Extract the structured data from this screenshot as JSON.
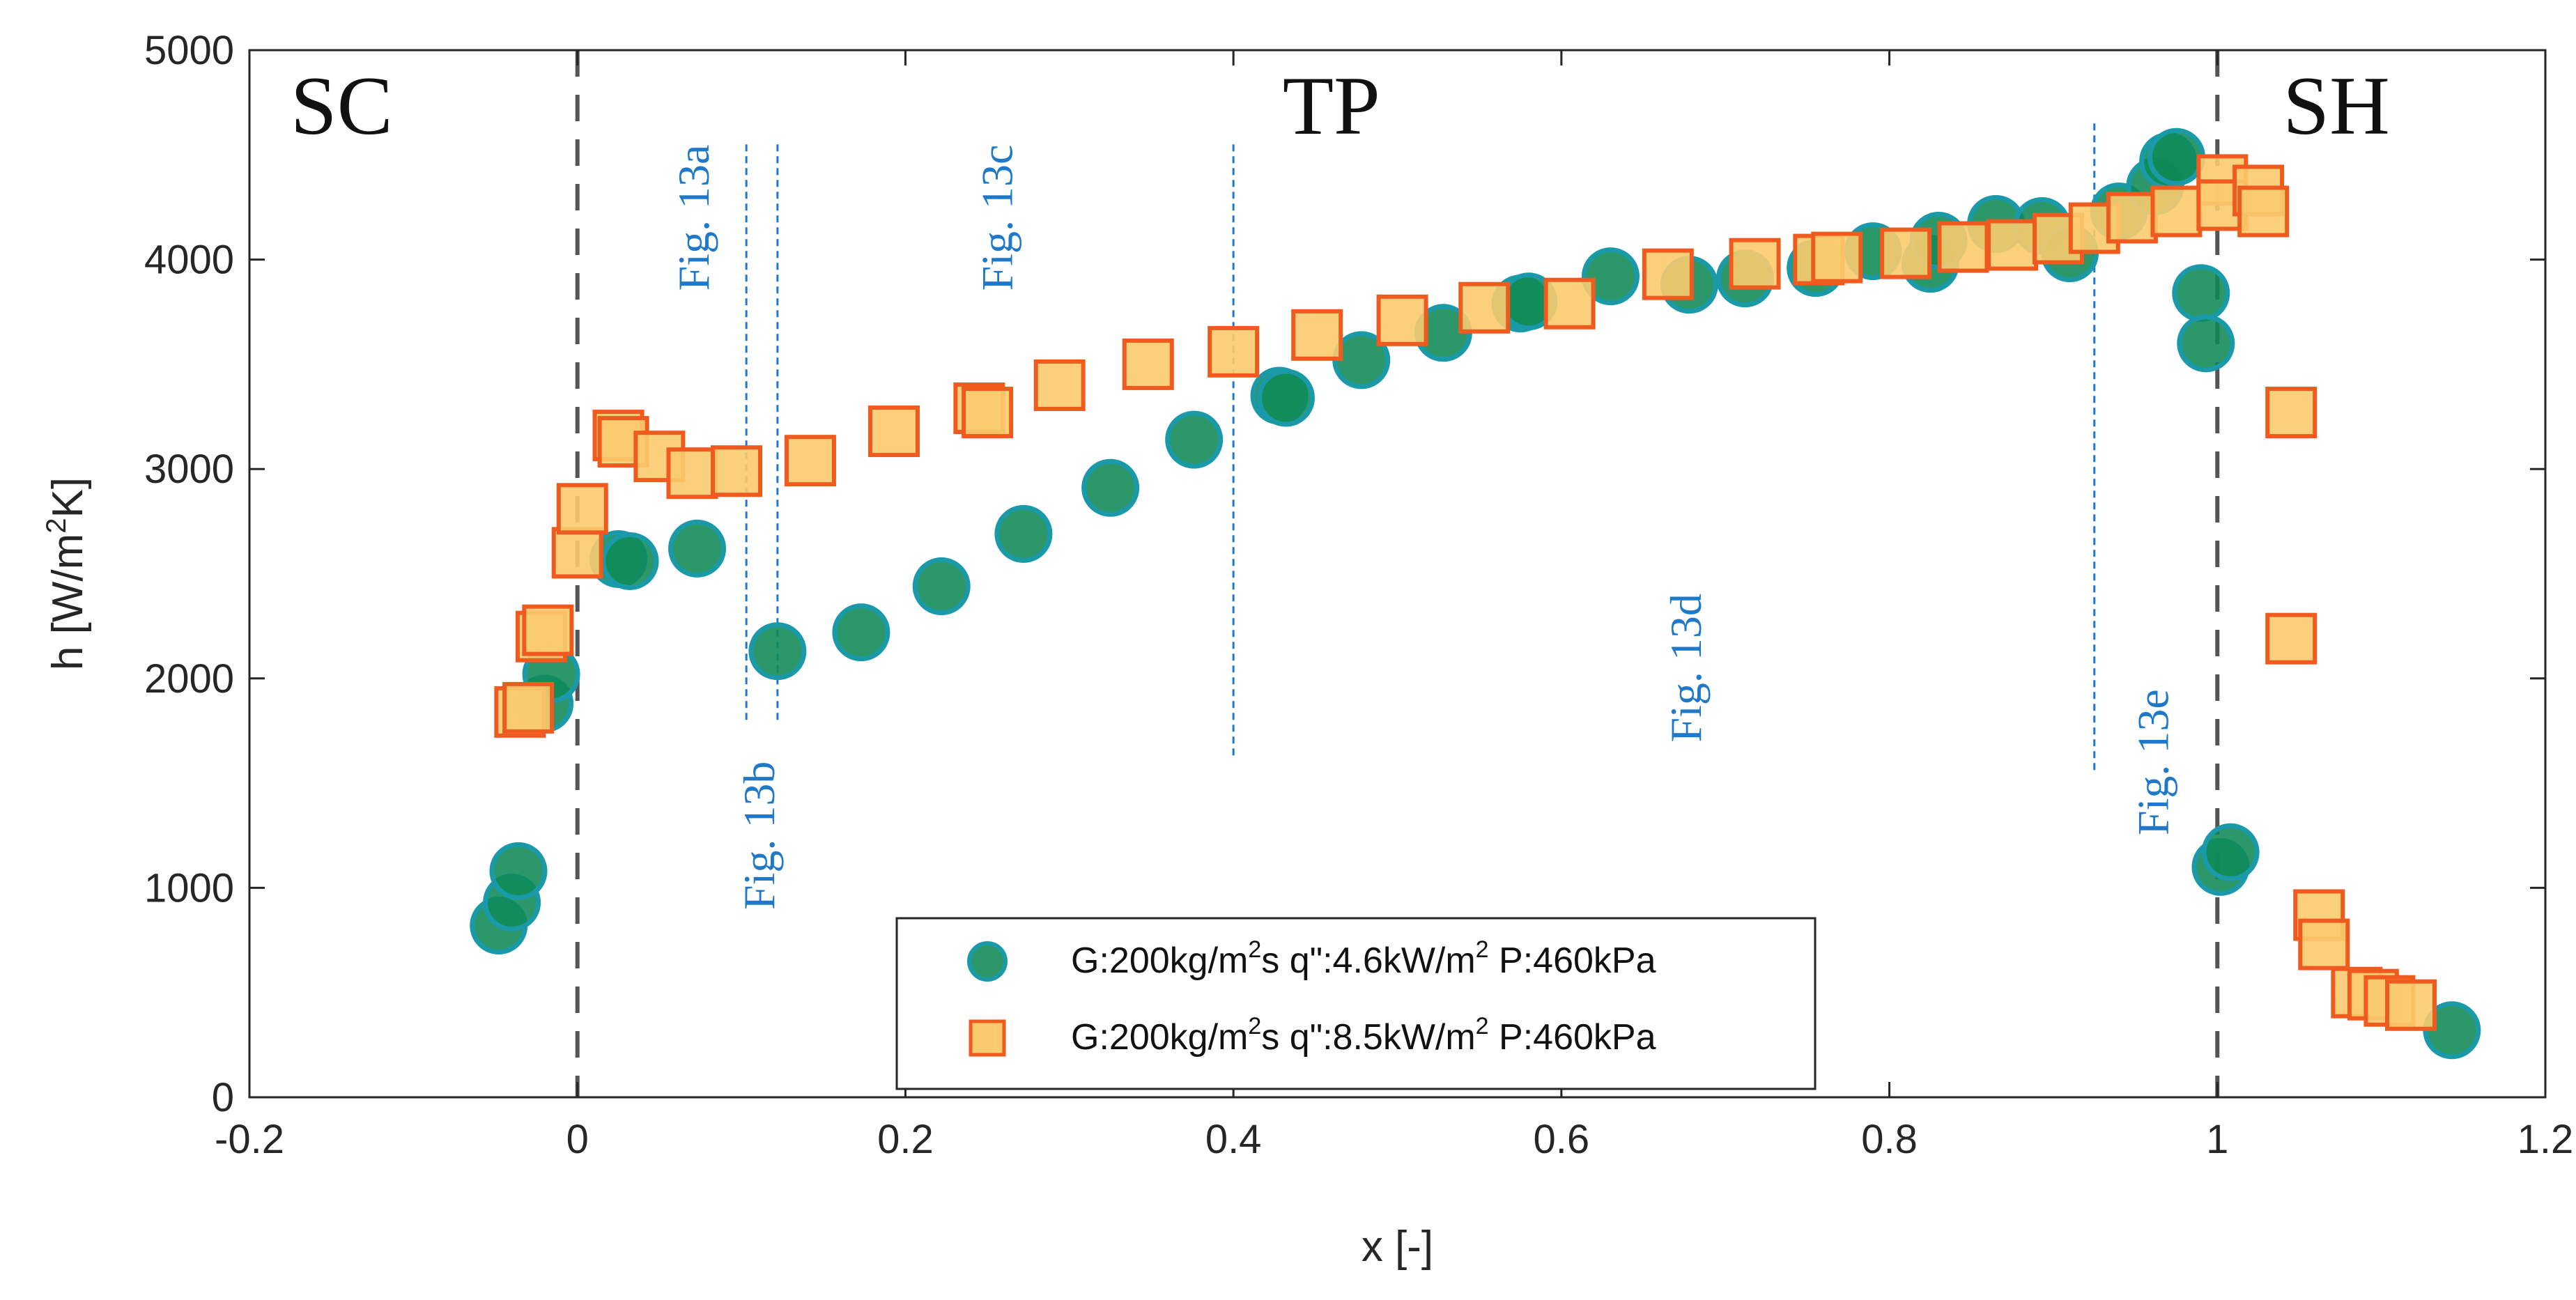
{
  "chart_data": {
    "type": "scatter",
    "xlabel": "x [-]",
    "ylabel_main": "h [W/m",
    "ylabel_sup": "2",
    "ylabel_end": "K]",
    "xlim": [
      -0.2,
      1.2
    ],
    "ylim": [
      0,
      5000
    ],
    "x_ticks": [
      -0.2,
      0,
      0.2,
      0.4,
      0.6,
      0.8,
      1,
      1.2
    ],
    "x_tick_labels": [
      "-0.2",
      "0",
      "0.2",
      "0.4",
      "0.6",
      "0.8",
      "1",
      "1.2"
    ],
    "y_ticks": [
      0,
      1000,
      2000,
      3000,
      4000,
      5000
    ],
    "y_tick_labels": [
      "0",
      "1000",
      "2000",
      "3000",
      "4000",
      "5000"
    ],
    "grid": false,
    "legend_position": "bottom-center",
    "region_boundaries": [
      0,
      1
    ],
    "region_labels": [
      {
        "text": "SC",
        "x": -0.175,
        "y": 4600
      },
      {
        "text": "TP",
        "x": 0.43,
        "y": 4600
      },
      {
        "text": "SH",
        "x": 1.04,
        "y": 4600
      }
    ],
    "fig_markers": [
      {
        "x": 0.103,
        "y_from": 1800,
        "y_to": 4550
      },
      {
        "x": 0.122,
        "y_from": 1800,
        "y_to": 4550
      },
      {
        "x": 0.4,
        "y_from": 1620,
        "y_to": 4550
      },
      {
        "x": 0.925,
        "y_from": 1540,
        "y_to": 4650
      }
    ],
    "fig_labels": [
      {
        "text": "Fig. 13a",
        "x": 0.08,
        "y": 4200
      },
      {
        "text": "Fig. 13b",
        "x": 0.12,
        "y": 1250
      },
      {
        "text": "Fig. 13c",
        "x": 0.265,
        "y": 4200
      },
      {
        "text": "Fig. 13d",
        "x": 0.685,
        "y": 2050
      },
      {
        "text": "Fig. 13e",
        "x": 0.97,
        "y": 1600
      }
    ],
    "series": [
      {
        "name_parts": [
          "G:200kg/m",
          "2",
          "s q\":4.6kW/m",
          "2",
          " P:460kPa"
        ],
        "marker": "circle",
        "fill": "#0f8a55",
        "stroke": "#1a9aa8",
        "points": [
          [
            -0.048,
            820
          ],
          [
            -0.04,
            930
          ],
          [
            -0.036,
            1080
          ],
          [
            -0.02,
            1880
          ],
          [
            -0.016,
            2020
          ],
          [
            0.025,
            2570
          ],
          [
            0.032,
            2560
          ],
          [
            0.073,
            2620
          ],
          [
            0.122,
            2130
          ],
          [
            0.173,
            2220
          ],
          [
            0.222,
            2440
          ],
          [
            0.272,
            2690
          ],
          [
            0.325,
            2910
          ],
          [
            0.376,
            3140
          ],
          [
            0.428,
            3350
          ],
          [
            0.432,
            3340
          ],
          [
            0.478,
            3520
          ],
          [
            0.528,
            3650
          ],
          [
            0.575,
            3790
          ],
          [
            0.58,
            3800
          ],
          [
            0.63,
            3920
          ],
          [
            0.678,
            3880
          ],
          [
            0.712,
            3910
          ],
          [
            0.755,
            3960
          ],
          [
            0.79,
            4040
          ],
          [
            0.825,
            3980
          ],
          [
            0.83,
            4090
          ],
          [
            0.865,
            4170
          ],
          [
            0.893,
            4160
          ],
          [
            0.91,
            4030
          ],
          [
            0.94,
            4230
          ],
          [
            0.962,
            4350
          ],
          [
            0.97,
            4470
          ],
          [
            0.975,
            4490
          ],
          [
            0.99,
            3840
          ],
          [
            0.993,
            3600
          ],
          [
            1.002,
            1100
          ],
          [
            1.008,
            1170
          ],
          [
            1.143,
            320
          ]
        ]
      },
      {
        "name_parts": [
          "G:200kg/m",
          "2",
          "s q\":8.5kW/m",
          "2",
          " P:460kPa"
        ],
        "marker": "square",
        "fill": "#f9cb6e",
        "stroke": "#ef5a1e",
        "points": [
          [
            -0.035,
            1840
          ],
          [
            -0.03,
            1860
          ],
          [
            -0.022,
            2200
          ],
          [
            -0.018,
            2230
          ],
          [
            0.0,
            2600
          ],
          [
            0.003,
            2810
          ],
          [
            0.025,
            3160
          ],
          [
            0.028,
            3130
          ],
          [
            0.05,
            3060
          ],
          [
            0.07,
            2980
          ],
          [
            0.097,
            2990
          ],
          [
            0.142,
            3040
          ],
          [
            0.193,
            3180
          ],
          [
            0.245,
            3290
          ],
          [
            0.25,
            3270
          ],
          [
            0.294,
            3400
          ],
          [
            0.348,
            3500
          ],
          [
            0.4,
            3560
          ],
          [
            0.451,
            3640
          ],
          [
            0.503,
            3710
          ],
          [
            0.553,
            3770
          ],
          [
            0.605,
            3790
          ],
          [
            0.665,
            3930
          ],
          [
            0.718,
            3980
          ],
          [
            0.757,
            4000
          ],
          [
            0.768,
            4010
          ],
          [
            0.81,
            4030
          ],
          [
            0.845,
            4060
          ],
          [
            0.875,
            4070
          ],
          [
            0.903,
            4100
          ],
          [
            0.925,
            4150
          ],
          [
            0.948,
            4200
          ],
          [
            0.975,
            4230
          ],
          [
            1.003,
            4380
          ],
          [
            1.003,
            4260
          ],
          [
            1.025,
            4330
          ],
          [
            1.028,
            4230
          ],
          [
            1.045,
            3270
          ],
          [
            1.045,
            2190
          ],
          [
            1.062,
            870
          ],
          [
            1.065,
            730
          ],
          [
            1.085,
            500
          ],
          [
            1.095,
            490
          ],
          [
            1.105,
            460
          ],
          [
            1.118,
            440
          ]
        ]
      }
    ]
  }
}
